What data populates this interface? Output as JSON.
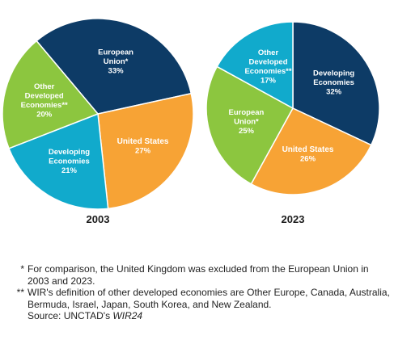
{
  "chart_data": [
    {
      "type": "pie",
      "title": "2003",
      "slices": [
        {
          "label": [
            "European",
            "Union*"
          ],
          "value": 33,
          "value_label": "33%",
          "color": "#0d3b66"
        },
        {
          "label": [
            "United States"
          ],
          "value": 27,
          "value_label": "27%",
          "color": "#f7a335"
        },
        {
          "label": [
            "Developing",
            "Economies"
          ],
          "value": 21,
          "value_label": "21%",
          "color": "#11aacc"
        },
        {
          "label": [
            "Other",
            "Developed",
            "Economies**"
          ],
          "value": 20,
          "value_label": "20%",
          "color": "#8cc63f"
        }
      ]
    },
    {
      "type": "pie",
      "title": "2023",
      "slices": [
        {
          "label": [
            "Developing",
            "Economies"
          ],
          "value": 32,
          "value_label": "32%",
          "color": "#0d3b66"
        },
        {
          "label": [
            "United States"
          ],
          "value": 26,
          "value_label": "26%",
          "color": "#f7a335"
        },
        {
          "label": [
            "European",
            "Union*"
          ],
          "value": 25,
          "value_label": "25%",
          "color": "#8cc63f"
        },
        {
          "label": [
            "Other",
            "Developed",
            "Economies**"
          ],
          "value": 17,
          "value_label": "17%",
          "color": "#11aacc"
        }
      ]
    }
  ],
  "footnotes": [
    {
      "mark": "*",
      "text": "For comparison, the United Kingdom was excluded from the European Union in 2003 and 2023."
    },
    {
      "mark": "**",
      "text": "WIR's definition of other developed economies are Other Europe, Canada, Australia, Bermuda, Israel, Japan, South Korea, and New Zealand."
    }
  ],
  "source": {
    "prefix": "Source: UNCTAD's ",
    "title": "WIR24"
  }
}
